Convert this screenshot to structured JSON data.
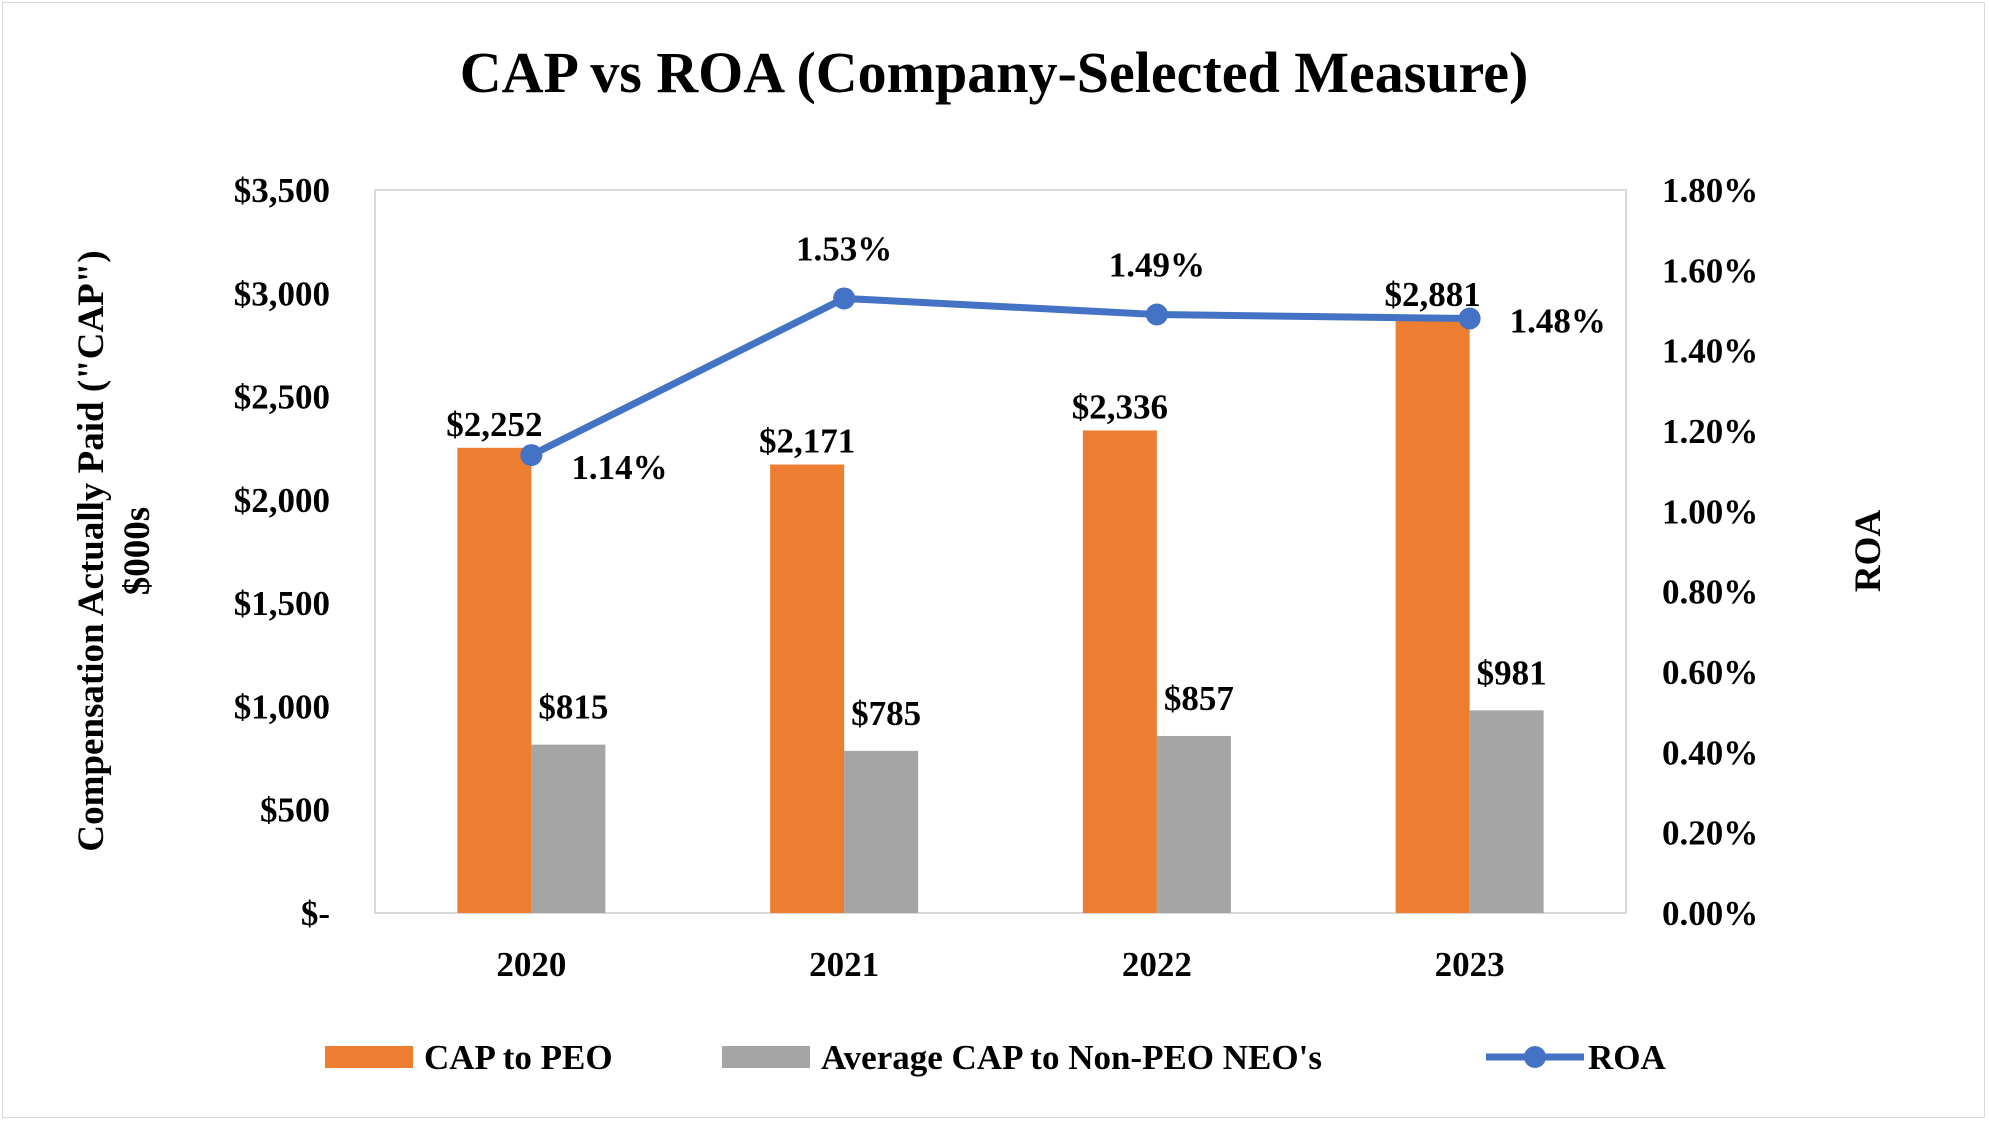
{
  "chart_data": {
    "type": "bar",
    "title": "CAP vs ROA (Company-Selected Measure)",
    "categories": [
      "2020",
      "2021",
      "2022",
      "2023"
    ],
    "ylabel": "Compensation  Actually  Paid (\"CAP\") $000s",
    "ylabel_lines": [
      "Compensation  Actually  Paid (\"CAP\")",
      "$000s"
    ],
    "y2label": "ROA",
    "ylim": [
      0,
      3500
    ],
    "y2lim": [
      0,
      1.8
    ],
    "yticks": [
      0,
      500,
      1000,
      1500,
      2000,
      2500,
      3000,
      3500
    ],
    "ytick_labels": [
      "$-",
      "$500",
      "$1,000",
      "$1,500",
      "$2,000",
      "$2,500",
      "$3,000",
      "$3,500"
    ],
    "y2ticks": [
      0,
      0.2,
      0.4,
      0.6,
      0.8,
      1.0,
      1.2,
      1.4,
      1.6,
      1.8
    ],
    "y2tick_labels": [
      "0.00%",
      "0.20%",
      "0.40%",
      "0.60%",
      "0.80%",
      "1.00%",
      "1.20%",
      "1.40%",
      "1.60%",
      "1.80%"
    ],
    "grid": false,
    "legend_placement": "bottom",
    "series": [
      {
        "name": "CAP to PEO",
        "type": "bar",
        "axis": "left",
        "color": "#ED7D31",
        "values": [
          2252,
          2171,
          2336,
          2881
        ],
        "labels": [
          "$2,252",
          "$2,171",
          "$2,336",
          "$2,881"
        ]
      },
      {
        "name": "Average CAP to Non-PEO NEO's",
        "type": "bar",
        "axis": "left",
        "color": "#A5A5A5",
        "values": [
          815,
          785,
          857,
          981
        ],
        "labels": [
          "$815",
          "$785",
          "$857",
          "$981"
        ]
      },
      {
        "name": "ROA",
        "type": "line",
        "axis": "right",
        "color": "#4472C4",
        "values": [
          1.14,
          1.53,
          1.49,
          1.48
        ],
        "labels": [
          "1.14%",
          "1.53%",
          "1.49%",
          "1.48%"
        ]
      }
    ]
  }
}
